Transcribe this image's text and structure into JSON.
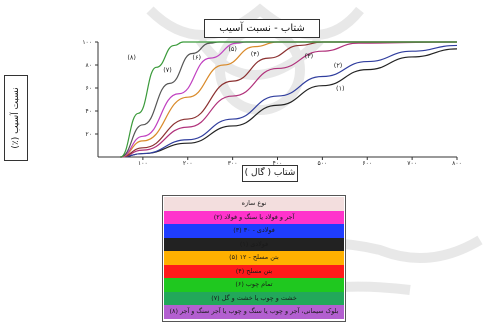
{
  "chart_data": {
    "type": "line",
    "title": "شتاب - نسبت آسیب",
    "xlabel": "شتاب ( گال )",
    "ylabel": "نسبت آسیب (٪)",
    "xlim": [
      0,
      800
    ],
    "ylim": [
      0,
      100
    ],
    "x_ticks": [
      "۱۰۰",
      "۲۰۰",
      "۳۰۰",
      "۴۰۰",
      "۵۰۰",
      "۶۰۰",
      "۷۰۰",
      "۸۰۰"
    ],
    "y_ticks": [
      "۲۰",
      "۴۰",
      "۶۰",
      "۸۰",
      "۱۰۰"
    ],
    "grid": false,
    "series": [
      {
        "label": "(۱)",
        "color": "#222222",
        "points": [
          [
            50,
            0
          ],
          [
            100,
            3
          ],
          [
            200,
            12
          ],
          [
            300,
            27
          ],
          [
            400,
            45
          ],
          [
            500,
            62
          ],
          [
            600,
            76
          ],
          [
            700,
            87
          ],
          [
            800,
            94
          ]
        ]
      },
      {
        "label": "(۲)",
        "color": "#2f3d9e",
        "points": [
          [
            50,
            0
          ],
          [
            100,
            3
          ],
          [
            200,
            15
          ],
          [
            300,
            33
          ],
          [
            400,
            53
          ],
          [
            500,
            70
          ],
          [
            600,
            83
          ],
          [
            700,
            92
          ],
          [
            800,
            97
          ]
        ]
      },
      {
        "label": "(۳)",
        "color": "#b0307a",
        "points": [
          [
            50,
            0
          ],
          [
            100,
            6
          ],
          [
            200,
            26
          ],
          [
            300,
            53
          ],
          [
            400,
            77
          ],
          [
            500,
            92
          ],
          [
            580,
            99
          ],
          [
            800,
            100
          ]
        ]
      },
      {
        "label": "(۴)",
        "color": "#8b3030",
        "points": [
          [
            50,
            0
          ],
          [
            100,
            8
          ],
          [
            200,
            33
          ],
          [
            300,
            66
          ],
          [
            380,
            86
          ],
          [
            450,
            97
          ],
          [
            500,
            100
          ],
          [
            800,
            100
          ]
        ]
      },
      {
        "label": "(۵)",
        "color": "#d98a2a",
        "points": [
          [
            50,
            0
          ],
          [
            100,
            14
          ],
          [
            200,
            52
          ],
          [
            280,
            80
          ],
          [
            350,
            96
          ],
          [
            400,
            100
          ],
          [
            800,
            100
          ]
        ]
      },
      {
        "label": "(۶)",
        "color": "#c040c0",
        "points": [
          [
            50,
            0
          ],
          [
            100,
            18
          ],
          [
            180,
            55
          ],
          [
            250,
            86
          ],
          [
            310,
            99
          ],
          [
            330,
            100
          ],
          [
            800,
            100
          ]
        ]
      },
      {
        "label": "(۷)",
        "color": "#555555",
        "points": [
          [
            50,
            0
          ],
          [
            100,
            28
          ],
          [
            160,
            64
          ],
          [
            210,
            90
          ],
          [
            250,
            99
          ],
          [
            270,
            100
          ],
          [
            800,
            100
          ]
        ]
      },
      {
        "label": "(۸)",
        "color": "#3a9a3a",
        "points": [
          [
            50,
            0
          ],
          [
            90,
            38
          ],
          [
            130,
            78
          ],
          [
            170,
            97
          ],
          [
            190,
            100
          ],
          [
            800,
            100
          ]
        ]
      }
    ]
  },
  "legend": {
    "header": "نوع سازه",
    "rows": [
      {
        "text": "آجر و فولاد یا سنگ و فولاد (۲)",
        "color": "#ff33cc"
      },
      {
        "text": "فولادی - ۳۰ (۳)",
        "color": "#1f3dff"
      },
      {
        "text": "فولادی (۱)",
        "color": "#222222"
      },
      {
        "text": "بتن مسلح - ۱۲ (۵)",
        "color": "#ffb000"
      },
      {
        "text": "بتن مسلح (۴)",
        "color": "#ff1a1a"
      },
      {
        "text": "تمام چوب (۶)",
        "color": "#1fc81f"
      },
      {
        "text": "خشت و چوب یا خشت و گل (۷)",
        "color": "#22a85a"
      },
      {
        "text": "بلوک سیمانی، آجر و چوب یا سنگ و چوب یا آجر سنگ و آجر (۸)",
        "color": "#b35fd0"
      }
    ]
  },
  "colors": {
    "axis": "#333333",
    "background": "#ffffff"
  }
}
